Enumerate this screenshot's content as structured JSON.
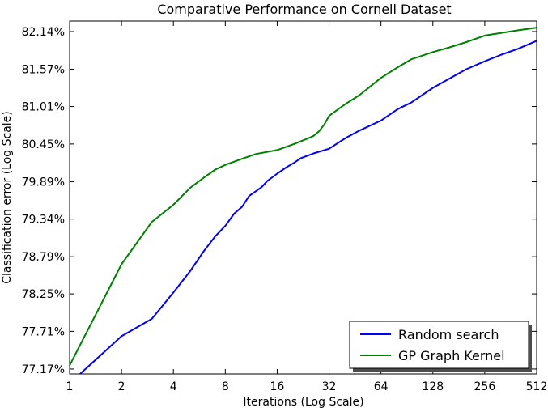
{
  "chart_data": {
    "type": "line",
    "title": "Comparative Performance on Cornell Dataset",
    "xlabel": "Iterations (Log Scale)",
    "ylabel": "Classification error (Log Scale)",
    "xscale": "log2",
    "xlim": [
      1,
      512
    ],
    "ylim": [
      77.1,
      82.3
    ],
    "xticks": [
      1,
      2,
      4,
      8,
      16,
      32,
      64,
      128,
      256,
      512
    ],
    "xtick_labels": [
      "1",
      "2",
      "4",
      "8",
      "16",
      "32",
      "64",
      "128",
      "256",
      "512"
    ],
    "yticks": [
      77.17,
      77.71,
      78.25,
      78.79,
      79.34,
      79.89,
      80.45,
      81.01,
      81.57,
      82.14
    ],
    "ytick_labels": [
      "77.17%",
      "77.71%",
      "78.25%",
      "78.79%",
      "79.34%",
      "79.89%",
      "80.45%",
      "81.01%",
      "81.57%",
      "82.14%"
    ],
    "grid": false,
    "legend_position": "bottom-right",
    "series": [
      {
        "name": "Random search",
        "color": "#0000ff",
        "x": [
          1.15,
          2,
          3,
          4,
          5,
          6,
          7,
          8,
          9,
          10,
          11,
          13,
          14,
          16,
          18,
          20,
          22,
          26,
          32,
          40,
          48,
          64,
          80,
          96,
          128,
          160,
          200,
          256,
          320,
          400,
          512
        ],
        "y": [
          77.1,
          77.64,
          77.89,
          78.27,
          78.58,
          78.87,
          79.09,
          79.24,
          79.42,
          79.52,
          79.68,
          79.81,
          79.9,
          80.01,
          80.1,
          80.17,
          80.24,
          80.31,
          80.38,
          80.54,
          80.65,
          80.8,
          80.97,
          81.07,
          81.29,
          81.43,
          81.57,
          81.69,
          81.79,
          81.88,
          82.0
        ]
      },
      {
        "name": "GP Graph Kernel",
        "color": "#008000",
        "x": [
          1,
          2,
          3,
          4,
          5,
          6,
          7,
          8,
          10,
          12,
          16,
          20,
          24,
          26,
          28,
          30,
          32,
          40,
          48,
          64,
          80,
          96,
          128,
          160,
          200,
          256,
          320,
          400,
          512
        ],
        "y": [
          77.22,
          78.68,
          79.3,
          79.55,
          79.8,
          79.95,
          80.07,
          80.14,
          80.23,
          80.3,
          80.36,
          80.45,
          80.53,
          80.57,
          80.64,
          80.74,
          80.87,
          81.05,
          81.18,
          81.44,
          81.6,
          81.72,
          81.83,
          81.9,
          81.98,
          82.08,
          82.12,
          82.16,
          82.2
        ]
      }
    ]
  }
}
